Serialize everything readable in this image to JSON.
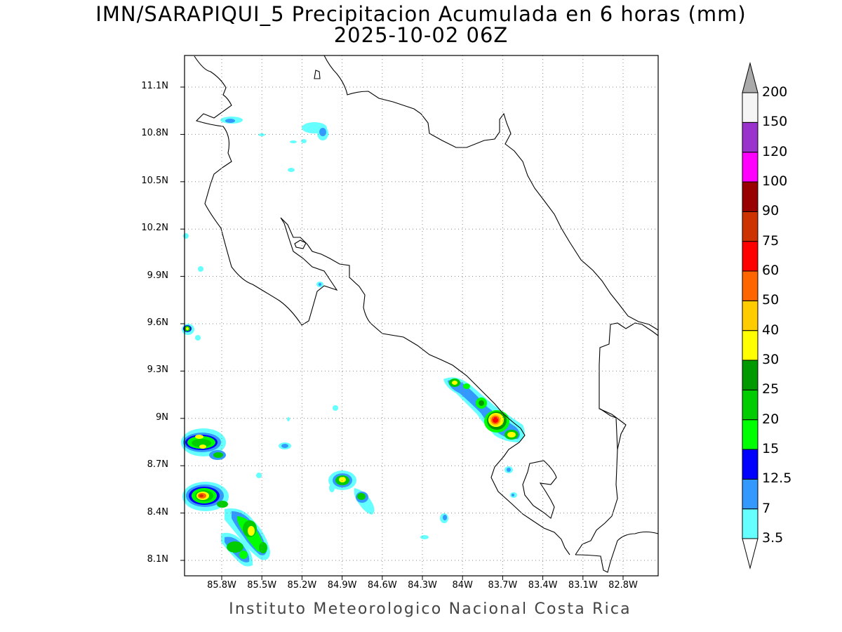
{
  "title": {
    "line1": "IMN/SARAPIQUI_5 Precipitacion Acumulada en 6 horas (mm)",
    "line2": "2025-10-02 06Z"
  },
  "footer": "Instituto Meteorologico Nacional Costa Rica",
  "axes": {
    "lat_ticks": [
      "11.1N",
      "10.8N",
      "10.5N",
      "10.2N",
      "9.9N",
      "9.6N",
      "9.3N",
      "9N",
      "8.7N",
      "8.4N",
      "8.1N"
    ],
    "lon_ticks": [
      "85.8W",
      "85.5W",
      "85.2W",
      "84.9W",
      "84.6W",
      "84.3W",
      "84W",
      "83.7W",
      "83.4W",
      "83.1W",
      "82.8W"
    ],
    "grid": "dotted",
    "lat_range": [
      8.0,
      11.3
    ],
    "lon_range": [
      -86.0,
      -82.5
    ]
  },
  "colorbar": {
    "labels": [
      "3.5",
      "7",
      "12.5",
      "15",
      "20",
      "25",
      "30",
      "40",
      "50",
      "60",
      "75",
      "90",
      "100",
      "120",
      "150",
      "200"
    ],
    "colors": [
      "#ffffff",
      "#66ffff",
      "#3399ff",
      "#0000ff",
      "#00ff00",
      "#00cc00",
      "#009900",
      "#ffff00",
      "#ffcc00",
      "#ff6600",
      "#ff0000",
      "#cc3300",
      "#990000",
      "#ff00ff",
      "#9933cc",
      "#f5f5f5",
      "#aaaaaa"
    ],
    "units": "mm"
  }
}
